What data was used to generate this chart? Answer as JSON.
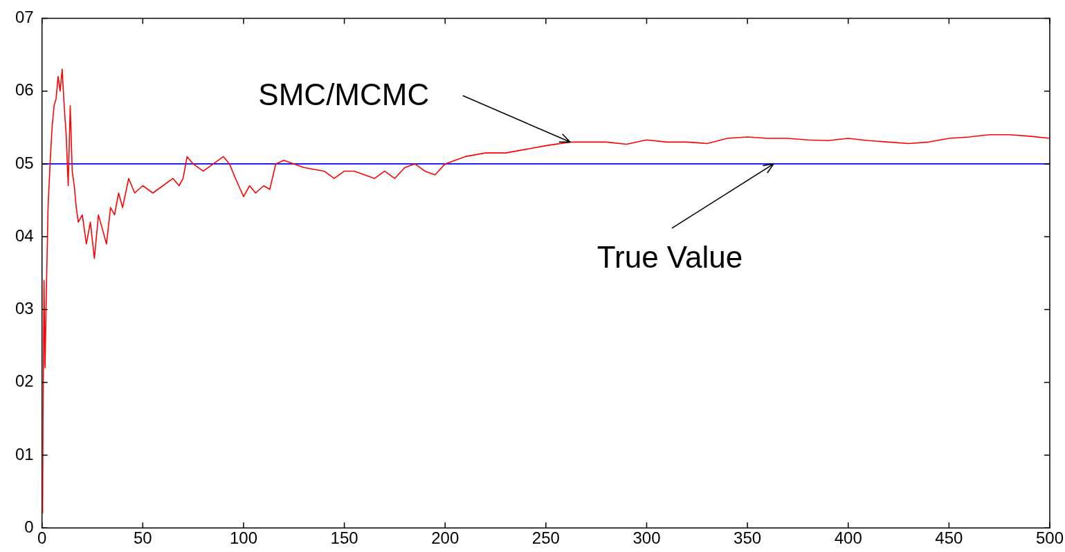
{
  "chart_data": {
    "type": "line",
    "x": [
      0.3,
      0.5,
      1,
      1.5,
      2,
      3,
      4,
      5,
      6,
      7,
      8,
      9,
      10,
      11,
      12,
      13,
      14,
      15,
      16,
      17,
      18,
      20,
      22,
      24,
      26,
      28,
      30,
      32,
      34,
      36,
      38,
      40,
      43,
      46,
      50,
      55,
      60,
      65,
      68,
      70,
      72,
      75,
      80,
      85,
      90,
      93,
      96,
      100,
      103,
      106,
      110,
      113,
      116,
      120,
      125,
      130,
      140,
      145,
      150,
      155,
      160,
      165,
      170,
      175,
      180,
      185,
      190,
      195,
      200,
      205,
      210,
      220,
      230,
      240,
      250,
      262,
      270,
      280,
      290,
      300,
      310,
      320,
      330,
      340,
      350,
      360,
      370,
      380,
      390,
      400,
      410,
      420,
      430,
      440,
      450,
      460,
      470,
      480,
      490,
      500
    ],
    "series": [
      {
        "color": "#ff0000",
        "values": [
          0.2,
          1.5,
          3.4,
          2.2,
          3.0,
          4.4,
          5.0,
          5.5,
          5.8,
          5.9,
          6.2,
          6.0,
          6.3,
          5.8,
          5.4,
          4.7,
          5.8,
          4.9,
          4.7,
          4.4,
          4.2,
          4.3,
          3.9,
          4.2,
          3.7,
          4.3,
          4.1,
          3.9,
          4.4,
          4.3,
          4.6,
          4.4,
          4.8,
          4.6,
          4.7,
          4.6,
          4.7,
          4.8,
          4.7,
          4.8,
          5.1,
          5.0,
          4.9,
          5.0,
          5.1,
          5.0,
          4.8,
          4.55,
          4.7,
          4.6,
          4.7,
          4.65,
          5.0,
          5.05,
          5.0,
          4.95,
          4.9,
          4.8,
          4.9,
          4.9,
          4.85,
          4.8,
          4.9,
          4.8,
          4.95,
          5.0,
          4.9,
          4.85,
          5.0,
          5.05,
          5.1,
          5.15,
          5.15,
          5.2,
          5.25,
          5.3,
          5.3,
          5.3,
          5.27,
          5.33,
          5.3,
          5.3,
          5.28,
          5.35,
          5.37,
          5.35,
          5.35,
          5.33,
          5.32,
          5.35,
          5.32,
          5.3,
          5.28,
          5.3,
          5.35,
          5.37,
          5.4,
          5.4,
          5.38,
          5.35
        ]
      }
    ],
    "xlim": [
      0,
      500
    ],
    "xticks": [
      0,
      50,
      100,
      150,
      200,
      250,
      300,
      350,
      400,
      450,
      500
    ],
    "ylim": [
      0,
      7
    ],
    "yticks": [
      0,
      {
        "value": 1,
        "label": "01"
      },
      {
        "value": 2,
        "label": "02"
      },
      {
        "value": 3,
        "label": "03"
      },
      {
        "value": 4,
        "label": "04"
      },
      {
        "value": 5,
        "label": "05"
      },
      {
        "value": 6,
        "label": "06"
      },
      {
        "value": 7,
        "label": "07"
      }
    ],
    "ref_lines": [
      {
        "axis": "y",
        "value": 5,
        "color": "#0000ff"
      }
    ],
    "annotations": [
      {
        "text": "SMC/MCMC",
        "x": 262,
        "y": 5.3
      },
      {
        "text": "True Value",
        "x": 363,
        "y": 5
      }
    ],
    "grid": false,
    "legend": false,
    "marker": "none",
    "line_style": "solid"
  }
}
